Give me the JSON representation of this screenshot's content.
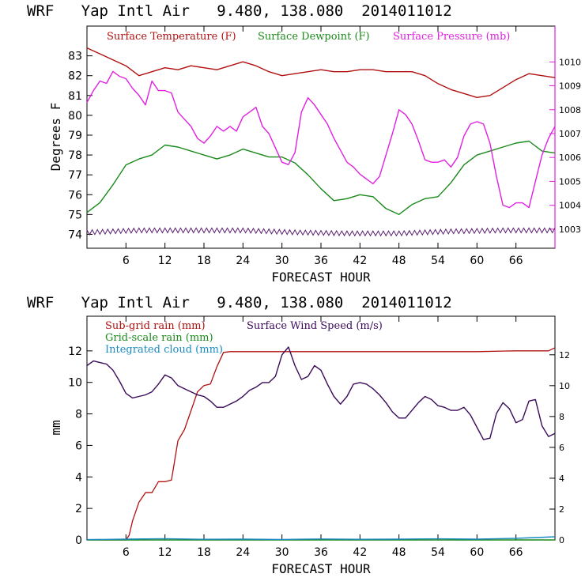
{
  "chart_data": [
    {
      "type": "line",
      "title": "WRF   Yap Intl Air   9.480, 138.080  2014011012",
      "xlabel": "FORECAST HOUR",
      "ylabel": "Degrees F",
      "xlim": [
        0,
        72
      ],
      "ylim": [
        73.3,
        84.5
      ],
      "y2lim": [
        1002.2,
        1011.5
      ],
      "xticks": [
        "6",
        "12",
        "18",
        "24",
        "30",
        "36",
        "42",
        "48",
        "54",
        "60",
        "66"
      ],
      "yticks": [
        "74",
        "75",
        "76",
        "77",
        "78",
        "79",
        "80",
        "81",
        "82",
        "83"
      ],
      "y2ticks": [
        "1003",
        "1004",
        "1005",
        "1006",
        "1007",
        "1008",
        "1009",
        "1010"
      ],
      "legend_placement": "top",
      "series": [
        {
          "name": "Surface Temperature (F)",
          "color": "#b01010",
          "axis": "left",
          "x": [
            0,
            2,
            4,
            6,
            8,
            10,
            12,
            14,
            16,
            18,
            20,
            22,
            24,
            26,
            28,
            30,
            32,
            34,
            36,
            38,
            40,
            42,
            44,
            46,
            48,
            50,
            52,
            54,
            56,
            58,
            60,
            62,
            64,
            66,
            68,
            70,
            72
          ],
          "values": [
            83.4,
            83.1,
            82.8,
            82.5,
            82.0,
            82.2,
            82.4,
            82.3,
            82.5,
            82.4,
            82.3,
            82.5,
            82.7,
            82.5,
            82.2,
            82.0,
            82.1,
            82.2,
            82.3,
            82.2,
            82.2,
            82.3,
            82.3,
            82.2,
            82.2,
            82.2,
            82.0,
            81.6,
            81.3,
            81.1,
            80.9,
            81.0,
            81.4,
            81.8,
            82.1,
            82.0,
            81.9
          ]
        },
        {
          "name": "Surface Dewpoint (F)",
          "color": "#1a8a1a",
          "axis": "left",
          "x": [
            0,
            2,
            4,
            6,
            8,
            10,
            12,
            14,
            16,
            18,
            20,
            22,
            24,
            26,
            28,
            30,
            32,
            34,
            36,
            38,
            40,
            42,
            44,
            46,
            48,
            50,
            52,
            54,
            56,
            58,
            60,
            62,
            64,
            66,
            68,
            70,
            72
          ],
          "values": [
            75.1,
            75.6,
            76.5,
            77.5,
            77.8,
            78.0,
            78.5,
            78.4,
            78.2,
            78.0,
            77.8,
            78.0,
            78.3,
            78.1,
            77.9,
            77.9,
            77.6,
            77.0,
            76.3,
            75.7,
            75.8,
            76.0,
            75.9,
            75.3,
            75.0,
            75.5,
            75.8,
            75.9,
            76.6,
            77.5,
            78.0,
            78.2,
            78.4,
            78.6,
            78.7,
            78.2,
            78.1
          ]
        },
        {
          "name": "Surface Pressure (mb)",
          "color": "#e020e0",
          "axis": "right",
          "x": [
            0,
            1,
            2,
            3,
            4,
            5,
            6,
            7,
            8,
            9,
            10,
            11,
            12,
            13,
            14,
            15,
            16,
            17,
            18,
            19,
            20,
            21,
            22,
            23,
            24,
            25,
            26,
            27,
            28,
            29,
            30,
            31,
            32,
            33,
            34,
            35,
            36,
            37,
            38,
            39,
            40,
            41,
            42,
            43,
            44,
            45,
            46,
            47,
            48,
            49,
            50,
            51,
            52,
            53,
            54,
            55,
            56,
            57,
            58,
            59,
            60,
            61,
            62,
            63,
            64,
            65,
            66,
            67,
            68,
            69,
            70,
            71,
            72
          ],
          "values": [
            1008.3,
            1008.8,
            1009.2,
            1009.1,
            1009.6,
            1009.4,
            1009.3,
            1008.9,
            1008.6,
            1008.2,
            1009.2,
            1008.8,
            1008.8,
            1008.7,
            1007.9,
            1007.6,
            1007.3,
            1006.8,
            1006.6,
            1006.9,
            1007.3,
            1007.1,
            1007.3,
            1007.1,
            1007.7,
            1007.9,
            1008.1,
            1007.3,
            1007.0,
            1006.4,
            1005.8,
            1005.7,
            1006.2,
            1007.9,
            1008.5,
            1008.2,
            1007.8,
            1007.4,
            1006.8,
            1006.3,
            1005.8,
            1005.6,
            1005.3,
            1005.1,
            1004.9,
            1005.2,
            1006.1,
            1007.0,
            1008.0,
            1007.8,
            1007.4,
            1006.7,
            1005.9,
            1005.8,
            1005.8,
            1005.9,
            1005.6,
            1006.0,
            1006.9,
            1007.4,
            1007.5,
            1007.4,
            1006.6,
            1005.2,
            1004.0,
            1003.9,
            1004.1,
            1004.1,
            1003.9,
            1005.0,
            1006.1,
            1006.8,
            1007.3
          ]
        },
        {
          "name": "",
          "color": "#5a2070",
          "style": "hatched-band",
          "axis": "left",
          "x": [
            0,
            8,
            16,
            24,
            32,
            40,
            48,
            56,
            64,
            72
          ],
          "values": [
            74.1,
            74.2,
            74.2,
            74.2,
            74.1,
            74.05,
            74.05,
            74.15,
            74.2,
            74.2
          ]
        }
      ]
    },
    {
      "type": "line",
      "title": "WRF   Yap Intl Air   9.480, 138.080  2014011012",
      "xlabel": "FORECAST HOUR",
      "ylabel": "mm",
      "xlim": [
        0,
        72
      ],
      "ylim": [
        0,
        14.2
      ],
      "y2lim": [
        0,
        14.5
      ],
      "xticks": [
        "6",
        "12",
        "18",
        "24",
        "30",
        "36",
        "42",
        "48",
        "54",
        "60",
        "66"
      ],
      "yticks": [
        "0",
        "2",
        "4",
        "6",
        "8",
        "10",
        "12"
      ],
      "y2ticks": [
        "0",
        "2",
        "4",
        "6",
        "8",
        "10",
        "12"
      ],
      "legend_placement": "top-left",
      "series": [
        {
          "name": "Sub-grid rain (mm)",
          "color": "#b01010",
          "axis": "left",
          "x": [
            0,
            6,
            6.5,
            7,
            8,
            9,
            10,
            11,
            12,
            13,
            14,
            15,
            16,
            17,
            18,
            19,
            20,
            21,
            22,
            30,
            40,
            50,
            60,
            66,
            71,
            72
          ],
          "values": [
            0,
            0,
            0.3,
            1.2,
            2.4,
            3.0,
            3.0,
            3.7,
            3.7,
            3.8,
            6.3,
            7.0,
            8.2,
            9.4,
            9.8,
            9.9,
            11.0,
            11.9,
            11.95,
            11.95,
            11.95,
            11.95,
            11.95,
            12.0,
            12.0,
            12.2
          ]
        },
        {
          "name": "Grid-scale rain (mm)",
          "color": "#1a8a1a",
          "axis": "left",
          "x": [
            0,
            72
          ],
          "values": [
            0,
            0
          ]
        },
        {
          "name": "Integrated cloud (mm)",
          "color": "#1a8ac0",
          "axis": "left",
          "x": [
            0,
            6,
            12,
            18,
            24,
            30,
            36,
            42,
            48,
            54,
            60,
            66,
            72
          ],
          "values": [
            0.02,
            0.05,
            0.08,
            0.04,
            0.05,
            0.03,
            0.06,
            0.04,
            0.05,
            0.07,
            0.05,
            0.1,
            0.2
          ]
        },
        {
          "name": "Surface Wind Speed (m/s)",
          "color": "#3a0a5a",
          "axis": "right",
          "x": [
            0,
            1,
            2,
            3,
            4,
            5,
            6,
            7,
            8,
            9,
            10,
            11,
            12,
            13,
            14,
            15,
            16,
            17,
            18,
            19,
            20,
            21,
            22,
            23,
            24,
            25,
            26,
            27,
            28,
            29,
            30,
            31,
            32,
            33,
            34,
            35,
            36,
            37,
            38,
            39,
            40,
            41,
            42,
            43,
            44,
            45,
            46,
            47,
            48,
            49,
            50,
            51,
            52,
            53,
            54,
            55,
            56,
            57,
            58,
            59,
            60,
            61,
            62,
            63,
            64,
            65,
            66,
            67,
            68,
            69,
            70,
            71,
            72
          ],
          "values": [
            11.3,
            11.6,
            11.5,
            11.4,
            11.0,
            10.3,
            9.5,
            9.2,
            9.3,
            9.4,
            9.6,
            10.1,
            10.7,
            10.5,
            10.0,
            9.8,
            9.6,
            9.4,
            9.3,
            9.0,
            8.6,
            8.6,
            8.8,
            9.0,
            9.3,
            9.7,
            9.9,
            10.2,
            10.2,
            10.6,
            12.0,
            12.5,
            11.3,
            10.4,
            10.6,
            11.3,
            11.0,
            10.1,
            9.3,
            8.8,
            9.3,
            10.1,
            10.2,
            10.1,
            9.8,
            9.4,
            8.9,
            8.3,
            7.9,
            7.9,
            8.4,
            8.9,
            9.3,
            9.1,
            8.7,
            8.6,
            8.4,
            8.4,
            8.6,
            8.1,
            7.3,
            6.5,
            6.6,
            8.2,
            8.9,
            8.5,
            7.6,
            7.8,
            9.0,
            9.1,
            7.4,
            6.7,
            6.9
          ]
        }
      ]
    }
  ]
}
